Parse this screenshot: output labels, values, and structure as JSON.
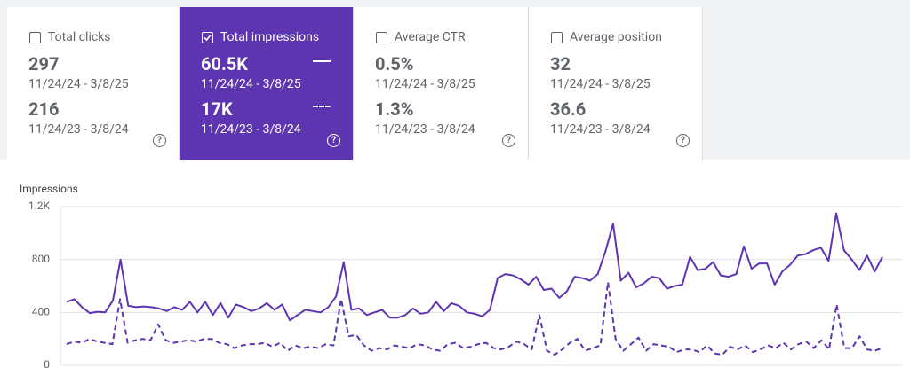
{
  "cards": [
    {
      "label": "Total clicks",
      "selected": false,
      "rows": [
        {
          "value": "297",
          "range": "11/24/24 - 3/8/25"
        },
        {
          "value": "216",
          "range": "11/24/23 - 3/8/24"
        }
      ]
    },
    {
      "label": "Total impressions",
      "selected": true,
      "rows": [
        {
          "value": "60.5K",
          "range": "11/24/24 - 3/8/25"
        },
        {
          "value": "17K",
          "range": "11/24/23 - 3/8/24"
        }
      ]
    },
    {
      "label": "Average CTR",
      "selected": false,
      "rows": [
        {
          "value": "0.5%",
          "range": "11/24/24 - 3/8/25"
        },
        {
          "value": "1.3%",
          "range": "11/24/23 - 3/8/24"
        }
      ]
    },
    {
      "label": "Average position",
      "selected": false,
      "rows": [
        {
          "value": "32",
          "range": "11/24/24 - 3/8/25"
        },
        {
          "value": "36.6",
          "range": "11/24/23 - 3/8/24"
        }
      ]
    }
  ],
  "chart_data": {
    "type": "line",
    "y_label": "Impressions",
    "ylim": [
      0,
      1200
    ],
    "yticks": [
      0,
      400,
      800,
      {
        "value": 1200,
        "label": "1.2K"
      }
    ],
    "grid": true,
    "series": [
      {
        "color": "#5e35b1",
        "dashed": false,
        "values": [
          480,
          500,
          440,
          395,
          405,
          400,
          490,
          800,
          450,
          440,
          445,
          440,
          430,
          410,
          440,
          420,
          480,
          400,
          480,
          380,
          470,
          360,
          460,
          440,
          410,
          430,
          470,
          420,
          460,
          340,
          380,
          420,
          410,
          400,
          440,
          520,
          780,
          420,
          430,
          380,
          400,
          420,
          360,
          360,
          380,
          430,
          390,
          400,
          480,
          410,
          470,
          450,
          400,
          390,
          370,
          420,
          660,
          690,
          680,
          650,
          610,
          670,
          570,
          580,
          510,
          560,
          670,
          660,
          640,
          690,
          860,
          1070,
          640,
          700,
          590,
          620,
          670,
          660,
          580,
          600,
          610,
          820,
          720,
          730,
          780,
          680,
          670,
          690,
          900,
          730,
          770,
          770,
          610,
          710,
          760,
          830,
          840,
          870,
          890,
          790,
          1150,
          870,
          800,
          720,
          830,
          710,
          820
        ]
      },
      {
        "color": "#5e35b1",
        "dashed": true,
        "values": [
          160,
          180,
          170,
          200,
          180,
          170,
          160,
          500,
          170,
          190,
          200,
          190,
          310,
          190,
          170,
          180,
          190,
          180,
          200,
          200,
          170,
          160,
          130,
          150,
          160,
          160,
          170,
          140,
          170,
          110,
          150,
          130,
          140,
          130,
          160,
          150,
          500,
          220,
          230,
          150,
          110,
          130,
          120,
          150,
          140,
          130,
          160,
          150,
          120,
          110,
          160,
          170,
          130,
          140,
          160,
          170,
          130,
          120,
          140,
          180,
          160,
          120,
          380,
          110,
          80,
          120,
          170,
          200,
          110,
          130,
          150,
          630,
          200,
          110,
          160,
          210,
          110,
          160,
          150,
          140,
          100,
          120,
          120,
          100,
          150,
          90,
          80,
          140,
          120,
          150,
          100,
          120,
          150,
          130,
          170,
          120,
          160,
          180,
          130,
          190,
          120,
          460,
          130,
          130,
          220,
          120,
          110,
          130
        ]
      }
    ]
  }
}
